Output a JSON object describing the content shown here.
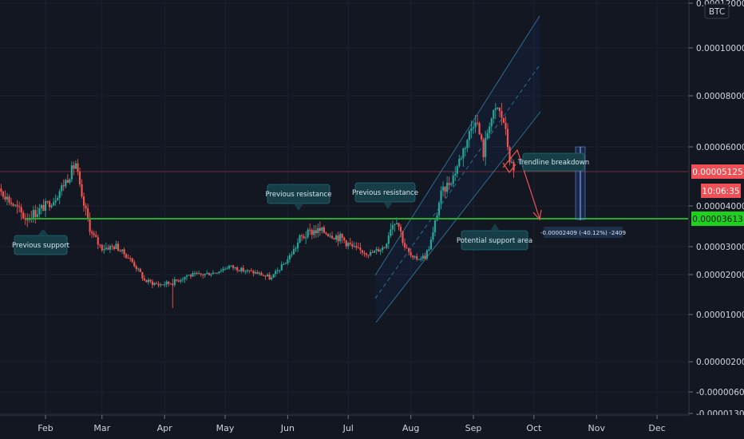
{
  "symbol": "BTC",
  "chart_data": {
    "type": "candlestick",
    "quote_currency": "BTC",
    "y_axis_ticks": [
      "0.00012000",
      "0.00010000",
      "0.00008000",
      "0.00006000",
      "0.00004000",
      "0.00003000",
      "0.00002000",
      "0.00001000",
      "0.00000200",
      "-0.00000600",
      "-0.00001300"
    ],
    "x_axis_ticks": [
      "Feb",
      "Mar",
      "Apr",
      "May",
      "Jun",
      "Jul",
      "Aug",
      "Sep",
      "Oct",
      "Nov",
      "Dec"
    ],
    "last_price": "0.00005125",
    "countdown": "10:06:35",
    "support_price": "0.00003613",
    "price_path": [
      [
        "2021-01-01",
        5.6e-05
      ],
      [
        "2021-01-08",
        4.7e-05
      ],
      [
        "2021-01-15",
        4.1e-05
      ],
      [
        "2021-01-22",
        3.7e-05
      ],
      [
        "2021-01-29",
        3.9e-05
      ],
      [
        "2021-02-05",
        4.2e-05
      ],
      [
        "2021-02-12",
        4.95e-05
      ],
      [
        "2021-02-16",
        5.45e-05
      ],
      [
        "2021-02-19",
        4.2e-05
      ],
      [
        "2021-02-24",
        3.3e-05
      ],
      [
        "2021-03-01",
        2.95e-05
      ],
      [
        "2021-03-08",
        3e-05
      ],
      [
        "2021-03-15",
        2.55e-05
      ],
      [
        "2021-03-22",
        1.85e-05
      ],
      [
        "2021-03-29",
        1.75e-05
      ],
      [
        "2021-04-05",
        1.8e-05
      ],
      [
        "2021-04-12",
        1.98e-05
      ],
      [
        "2021-04-19",
        2e-05
      ],
      [
        "2021-04-26",
        2.08e-05
      ],
      [
        "2021-05-03",
        2.3e-05
      ],
      [
        "2021-05-10",
        2.15e-05
      ],
      [
        "2021-05-17",
        2.05e-05
      ],
      [
        "2021-05-24",
        1.9e-05
      ],
      [
        "2021-05-31",
        2.45e-05
      ],
      [
        "2021-06-07",
        3.2e-05
      ],
      [
        "2021-06-14",
        3.4e-05
      ],
      [
        "2021-06-21",
        3.35e-05
      ],
      [
        "2021-06-28",
        3.2e-05
      ],
      [
        "2021-07-05",
        2.9e-05
      ],
      [
        "2021-07-12",
        2.75e-05
      ],
      [
        "2021-07-19",
        3e-05
      ],
      [
        "2021-07-22",
        3.5e-05
      ],
      [
        "2021-07-25",
        3.7e-05
      ],
      [
        "2021-07-29",
        3e-05
      ],
      [
        "2021-08-02",
        2.55e-05
      ],
      [
        "2021-08-08",
        2.65e-05
      ],
      [
        "2021-08-12",
        3.3e-05
      ],
      [
        "2021-08-16",
        4.4e-05
      ],
      [
        "2021-08-22",
        5e-05
      ],
      [
        "2021-08-28",
        6.1e-05
      ],
      [
        "2021-09-02",
        7.2e-05
      ],
      [
        "2021-09-06",
        5.8e-05
      ],
      [
        "2021-09-09",
        7e-05
      ],
      [
        "2021-09-13",
        7.5e-05
      ],
      [
        "2021-09-16",
        7e-05
      ],
      [
        "2021-09-19",
        5.6e-05
      ],
      [
        "2021-09-21",
        5.12e-05
      ]
    ],
    "price_low": "0.00001160",
    "measure_label": "-0.00002409 (-40.12%) -2409",
    "annotations": [
      {
        "text": "Previous support"
      },
      {
        "text": "Previous resistance"
      },
      {
        "text": "Previous resistance"
      },
      {
        "text": "Trendline breakdown"
      },
      {
        "text": "Potential support area"
      }
    ],
    "colors": {
      "background": "#131722",
      "up": "#26a69a",
      "down": "#ef5350",
      "support_line": "#22ab2f",
      "channel": "#2f6d8f",
      "last_price_badge": "#f04f55",
      "support_badge": "#1fd11f"
    }
  }
}
